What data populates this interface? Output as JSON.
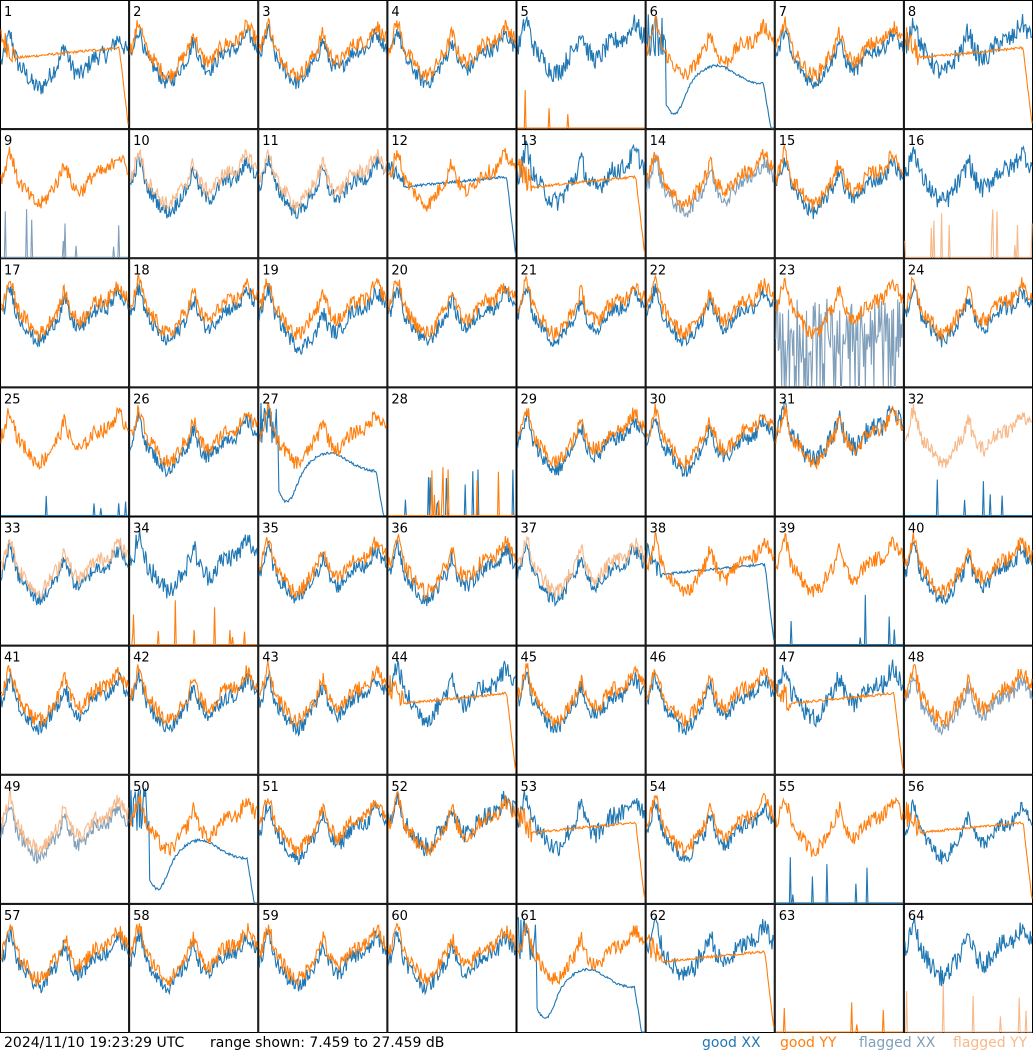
{
  "chart_data": {
    "type": "line",
    "layout": "8x8 small multiples",
    "panels": [
      {
        "label": "1",
        "xx": "good",
        "yy": "good",
        "shape_xx": "drop",
        "shape_yy": "smooth-plateau-drop"
      },
      {
        "label": "2",
        "xx": "good",
        "yy": "good",
        "shape_xx": "normal",
        "shape_yy": "normal"
      },
      {
        "label": "3",
        "xx": "good",
        "yy": "good",
        "shape_xx": "normal",
        "shape_yy": "normal"
      },
      {
        "label": "4",
        "xx": "good",
        "yy": "good",
        "shape_xx": "normal",
        "shape_yy": "normal"
      },
      {
        "label": "5",
        "xx": "good",
        "yy": "good",
        "shape_xx": "normal-high",
        "shape_yy": "spikes-low"
      },
      {
        "label": "6",
        "xx": "good",
        "yy": "good",
        "shape_xx": "smooth-dip-drop",
        "shape_yy": "normal"
      },
      {
        "label": "7",
        "xx": "good",
        "yy": "good",
        "shape_xx": "normal",
        "shape_yy": "normal"
      },
      {
        "label": "8",
        "xx": "good",
        "yy": "good",
        "shape_xx": "normal-high",
        "shape_yy": "smooth-plateau-drop"
      },
      {
        "label": "9",
        "xx": "flagged",
        "yy": "good",
        "shape_xx": "spikes-low",
        "shape_yy": "normal"
      },
      {
        "label": "10",
        "xx": "good",
        "yy": "flagged",
        "shape_xx": "normal",
        "shape_yy": "normal"
      },
      {
        "label": "11",
        "xx": "good",
        "yy": "flagged",
        "shape_xx": "normal",
        "shape_yy": "normal"
      },
      {
        "label": "12",
        "xx": "good",
        "yy": "good",
        "shape_xx": "smooth-plateau-drop",
        "shape_yy": "normal"
      },
      {
        "label": "13",
        "xx": "good",
        "yy": "good",
        "shape_xx": "normal-high",
        "shape_yy": "smooth-plateau-drop"
      },
      {
        "label": "14",
        "xx": "flagged",
        "yy": "good",
        "shape_xx": "normal",
        "shape_yy": "normal"
      },
      {
        "label": "15",
        "xx": "good",
        "yy": "good",
        "shape_xx": "normal",
        "shape_yy": "normal"
      },
      {
        "label": "16",
        "xx": "good",
        "yy": "flagged",
        "shape_xx": "normal-high",
        "shape_yy": "spikes-low"
      },
      {
        "label": "17",
        "xx": "good",
        "yy": "good",
        "shape_xx": "normal",
        "shape_yy": "normal"
      },
      {
        "label": "18",
        "xx": "good",
        "yy": "good",
        "shape_xx": "normal",
        "shape_yy": "normal"
      },
      {
        "label": "19",
        "xx": "good",
        "yy": "good",
        "shape_xx": "normal-deep",
        "shape_yy": "normal"
      },
      {
        "label": "20",
        "xx": "good",
        "yy": "good",
        "shape_xx": "normal",
        "shape_yy": "normal"
      },
      {
        "label": "21",
        "xx": "good",
        "yy": "good",
        "shape_xx": "normal",
        "shape_yy": "normal"
      },
      {
        "label": "22",
        "xx": "good",
        "yy": "good",
        "shape_xx": "normal",
        "shape_yy": "normal"
      },
      {
        "label": "23",
        "xx": "flagged",
        "yy": "good",
        "shape_xx": "noisy-low",
        "shape_yy": "normal"
      },
      {
        "label": "24",
        "xx": "good",
        "yy": "good",
        "shape_xx": "normal",
        "shape_yy": "normal"
      },
      {
        "label": "25",
        "xx": "good",
        "yy": "good",
        "shape_xx": "spikes-low",
        "shape_yy": "normal"
      },
      {
        "label": "26",
        "xx": "good",
        "yy": "good",
        "shape_xx": "normal",
        "shape_yy": "normal"
      },
      {
        "label": "27",
        "xx": "good",
        "yy": "good",
        "shape_xx": "smooth-dip-drop",
        "shape_yy": "normal"
      },
      {
        "label": "28",
        "xx": "good",
        "yy": "good",
        "shape_xx": "spikes-low",
        "shape_yy": "spikes-low"
      },
      {
        "label": "29",
        "xx": "good",
        "yy": "good",
        "shape_xx": "normal",
        "shape_yy": "normal"
      },
      {
        "label": "30",
        "xx": "good",
        "yy": "good",
        "shape_xx": "normal",
        "shape_yy": "normal"
      },
      {
        "label": "31",
        "xx": "good",
        "yy": "good",
        "shape_xx": "normal-high",
        "shape_yy": "normal"
      },
      {
        "label": "32",
        "xx": "good",
        "yy": "flagged",
        "shape_xx": "spikes-low",
        "shape_yy": "normal"
      },
      {
        "label": "33",
        "xx": "good",
        "yy": "flagged",
        "shape_xx": "normal",
        "shape_yy": "normal"
      },
      {
        "label": "34",
        "xx": "good",
        "yy": "good",
        "shape_xx": "normal-high",
        "shape_yy": "spikes-low"
      },
      {
        "label": "35",
        "xx": "good",
        "yy": "good",
        "shape_xx": "normal",
        "shape_yy": "normal"
      },
      {
        "label": "36",
        "xx": "good",
        "yy": "good",
        "shape_xx": "normal",
        "shape_yy": "normal"
      },
      {
        "label": "37",
        "xx": "good",
        "yy": "flagged",
        "shape_xx": "normal",
        "shape_yy": "normal"
      },
      {
        "label": "38",
        "xx": "good",
        "yy": "good",
        "shape_xx": "smooth-plateau-drop",
        "shape_yy": "normal"
      },
      {
        "label": "39",
        "xx": "good",
        "yy": "good",
        "shape_xx": "spikes-low",
        "shape_yy": "normal"
      },
      {
        "label": "40",
        "xx": "good",
        "yy": "good",
        "shape_xx": "normal",
        "shape_yy": "normal"
      },
      {
        "label": "41",
        "xx": "good",
        "yy": "good",
        "shape_xx": "normal",
        "shape_yy": "normal"
      },
      {
        "label": "42",
        "xx": "good",
        "yy": "good",
        "shape_xx": "normal",
        "shape_yy": "normal"
      },
      {
        "label": "43",
        "xx": "good",
        "yy": "good",
        "shape_xx": "normal",
        "shape_yy": "normal"
      },
      {
        "label": "44",
        "xx": "good",
        "yy": "good",
        "shape_xx": "normal-high",
        "shape_yy": "smooth-plateau-drop"
      },
      {
        "label": "45",
        "xx": "good",
        "yy": "good",
        "shape_xx": "normal",
        "shape_yy": "normal"
      },
      {
        "label": "46",
        "xx": "good",
        "yy": "good",
        "shape_xx": "normal",
        "shape_yy": "normal"
      },
      {
        "label": "47",
        "xx": "good",
        "yy": "good",
        "shape_xx": "normal-high",
        "shape_yy": "smooth-plateau-drop"
      },
      {
        "label": "48",
        "xx": "flagged",
        "yy": "good",
        "shape_xx": "normal",
        "shape_yy": "normal"
      },
      {
        "label": "49",
        "xx": "flagged",
        "yy": "flagged",
        "shape_xx": "normal",
        "shape_yy": "normal"
      },
      {
        "label": "50",
        "xx": "good",
        "yy": "good",
        "shape_xx": "smooth-dip-drop",
        "shape_yy": "normal"
      },
      {
        "label": "51",
        "xx": "good",
        "yy": "good",
        "shape_xx": "normal",
        "shape_yy": "normal"
      },
      {
        "label": "52",
        "xx": "good",
        "yy": "good",
        "shape_xx": "normal-high",
        "shape_yy": "normal"
      },
      {
        "label": "53",
        "xx": "good",
        "yy": "good",
        "shape_xx": "normal-high",
        "shape_yy": "smooth-plateau-drop"
      },
      {
        "label": "54",
        "xx": "good",
        "yy": "good",
        "shape_xx": "normal",
        "shape_yy": "normal"
      },
      {
        "label": "55",
        "xx": "good",
        "yy": "good",
        "shape_xx": "spikes-low",
        "shape_yy": "normal"
      },
      {
        "label": "56",
        "xx": "good",
        "yy": "good",
        "shape_xx": "normal",
        "shape_yy": "smooth-plateau-drop"
      },
      {
        "label": "57",
        "xx": "good",
        "yy": "good",
        "shape_xx": "normal",
        "shape_yy": "normal"
      },
      {
        "label": "58",
        "xx": "good",
        "yy": "good",
        "shape_xx": "normal",
        "shape_yy": "normal"
      },
      {
        "label": "59",
        "xx": "good",
        "yy": "good",
        "shape_xx": "normal",
        "shape_yy": "normal"
      },
      {
        "label": "60",
        "xx": "good",
        "yy": "good",
        "shape_xx": "normal",
        "shape_yy": "normal"
      },
      {
        "label": "61",
        "xx": "good",
        "yy": "good",
        "shape_xx": "smooth-dip-drop",
        "shape_yy": "normal"
      },
      {
        "label": "62",
        "xx": "good",
        "yy": "good",
        "shape_xx": "normal-high",
        "shape_yy": "smooth-plateau-drop"
      },
      {
        "label": "63",
        "xx": "good",
        "yy": "good",
        "shape_xx": "none",
        "shape_yy": "spikes-low"
      },
      {
        "label": "64",
        "xx": "good",
        "yy": "flagged",
        "shape_xx": "normal-high",
        "shape_yy": "spikes-low"
      }
    ],
    "legend": [
      "good XX",
      "good YY",
      "flagged XX",
      "flagged YY"
    ],
    "colors": {
      "good_xx": "#1f77b4",
      "good_yy": "#ff7f0e",
      "flagged_xx": "#7f9fba",
      "flagged_yy": "#f7b98a"
    },
    "range_db": [
      7.459,
      27.459
    ]
  },
  "footer": {
    "timestamp": "2024/11/10 19:23:29 UTC",
    "range_text": "range shown: 7.459 to 27.459 dB",
    "legend_good_xx": "good XX",
    "legend_good_yy": "good YY",
    "legend_flagged_xx": "flagged XX",
    "legend_flagged_yy": "flagged YY"
  }
}
